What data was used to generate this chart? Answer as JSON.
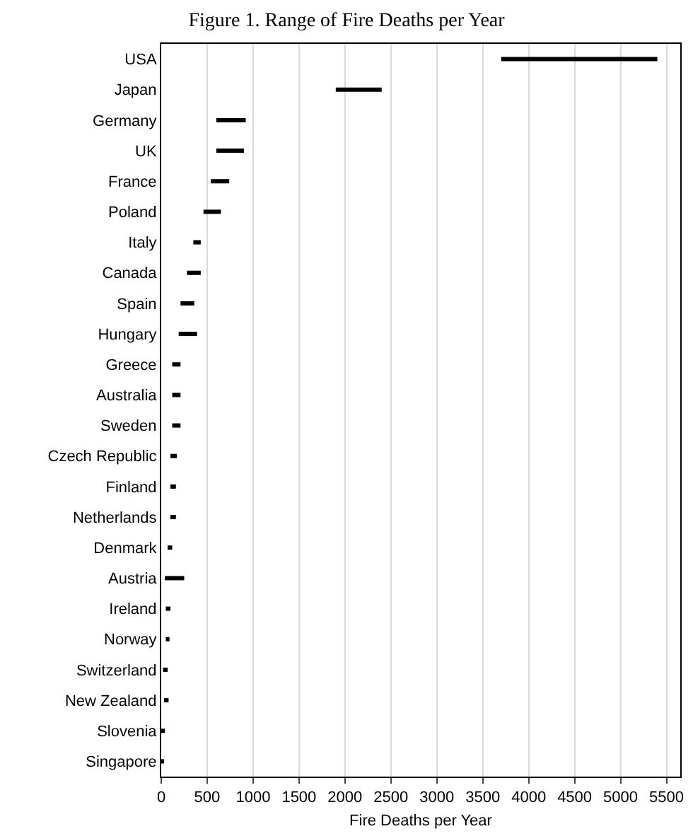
{
  "chart_data": {
    "type": "bar",
    "orientation": "horizontal",
    "title": "Figure 1. Range of Fire Deaths per Year",
    "xlabel": "Fire Deaths per Year",
    "categories": [
      "USA",
      "Japan",
      "Germany",
      "UK",
      "France",
      "Poland",
      "Italy",
      "Canada",
      "Spain",
      "Hungary",
      "Greece",
      "Australia",
      "Sweden",
      "Czech Republic",
      "Finland",
      "Netherlands",
      "Denmark",
      "Austria",
      "Ireland",
      "Norway",
      "Switzerland",
      "New Zealand",
      "Slovenia",
      "Singapore"
    ],
    "base": [
      3700,
      1900,
      600,
      600,
      540,
      460,
      350,
      280,
      210,
      190,
      120,
      120,
      120,
      100,
      100,
      100,
      70,
      40,
      50,
      50,
      20,
      30,
      10,
      0
    ],
    "values": [
      1700,
      500,
      320,
      300,
      200,
      190,
      80,
      150,
      150,
      200,
      90,
      90,
      90,
      70,
      60,
      60,
      50,
      210,
      50,
      40,
      50,
      50,
      30,
      30
    ],
    "color": "#000000",
    "xlim": [
      0,
      5650
    ],
    "xticks": [
      0,
      500,
      1000,
      1500,
      2000,
      2500,
      3000,
      3500,
      4000,
      4500,
      5000,
      5500
    ],
    "grid": "x"
  }
}
